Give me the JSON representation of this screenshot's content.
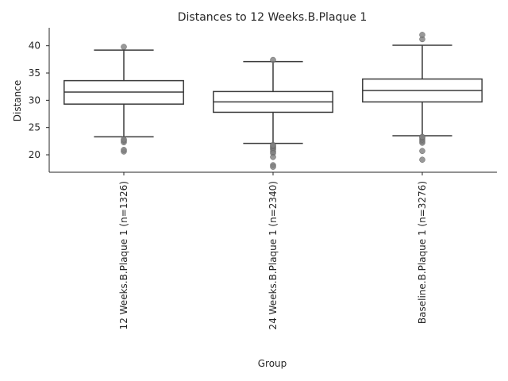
{
  "chart_data": {
    "type": "box",
    "title": "Distances to 12 Weeks.B.Plaque 1",
    "xlabel": "Group",
    "ylabel": "Distance",
    "ylim": [
      16.8,
      43.3
    ],
    "yticks": [
      20,
      25,
      30,
      35,
      40
    ],
    "grid": false,
    "categories": [
      "12 Weeks.B.Plaque 1 (n=1326)",
      "24 Weeks.B.Plaque 1 (n=2340)",
      "Baseline.B.Plaque 1 (n=3276)"
    ],
    "boxes": [
      {
        "whisker_low": 23.3,
        "q1": 29.3,
        "median": 31.5,
        "q3": 33.6,
        "whisker_high": 39.2,
        "outliers": [
          22.3,
          22.6,
          22.8,
          20.6,
          20.9,
          39.8
        ]
      },
      {
        "whisker_low": 22.1,
        "q1": 27.8,
        "median": 29.7,
        "q3": 31.6,
        "whisker_high": 37.1,
        "outliers": [
          21.0,
          21.2,
          21.4,
          21.6,
          21.8,
          20.6,
          20.3,
          19.6,
          18.1,
          17.8,
          37.4
        ]
      },
      {
        "whisker_low": 23.5,
        "q1": 29.7,
        "median": 31.8,
        "q3": 33.9,
        "whisker_high": 40.1,
        "outliers": [
          22.2,
          22.5,
          22.8,
          23.1,
          23.3,
          20.7,
          19.1,
          41.2,
          42.0
        ]
      }
    ],
    "colors": {
      "box_edge": "#3a3a3a",
      "outlier": "#7f7f7f",
      "text": "#262626",
      "axis": "#262626"
    }
  }
}
